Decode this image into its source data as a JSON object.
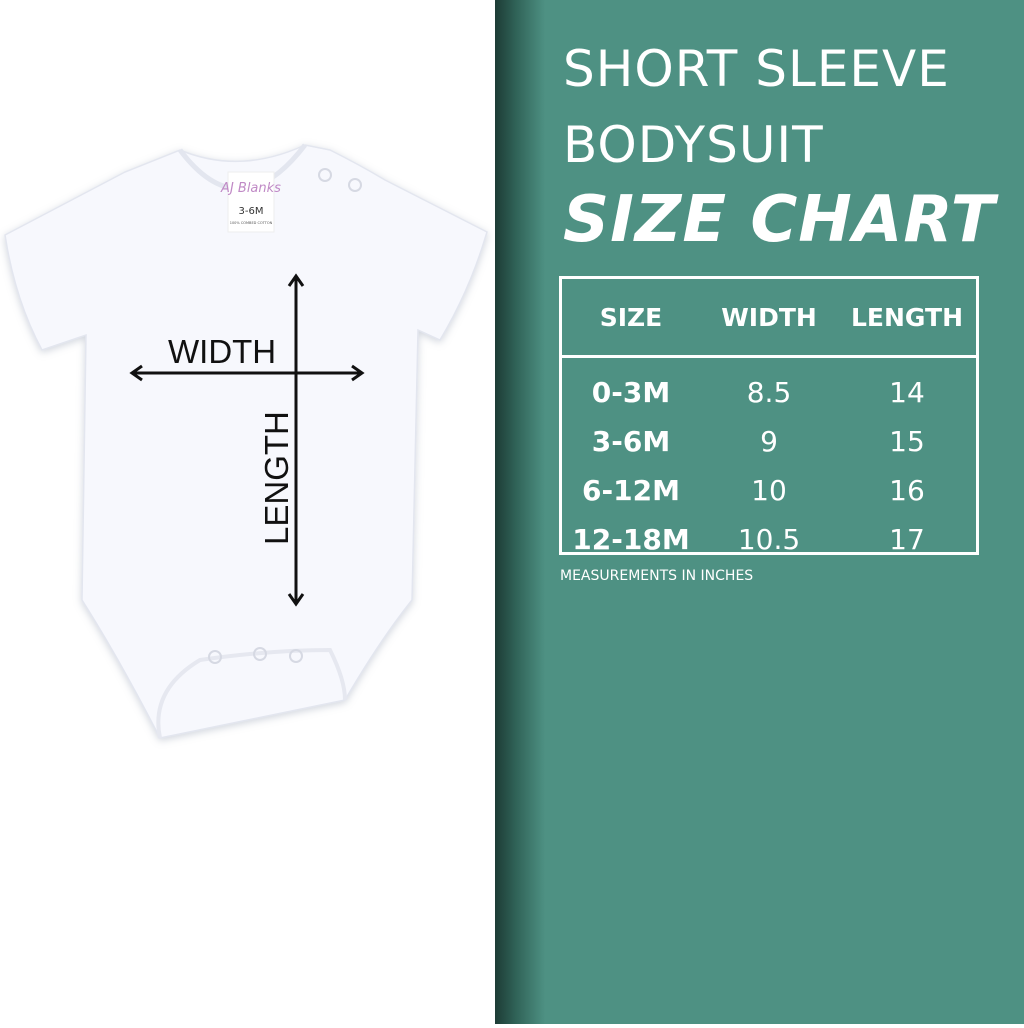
{
  "title": {
    "line1": "SHORT SLEEVE",
    "line2": "BODYSUIT",
    "line3": "SIZE CHART"
  },
  "table": {
    "headers": [
      "SIZE",
      "WIDTH",
      "LENGTH"
    ],
    "rows": [
      [
        "0-3M",
        "8.5",
        "14"
      ],
      [
        "3-6M",
        "9",
        "15"
      ],
      [
        "6-12M",
        "10",
        "16"
      ],
      [
        "12-18M",
        "10.5",
        "17"
      ]
    ]
  },
  "note": "MEASUREMENTS IN INCHES",
  "diagram": {
    "width_label": "WIDTH",
    "length_label": "LENGTH"
  },
  "garment_tag": {
    "brand": "AJ Blanks",
    "size": "3-6M",
    "fabric": "100% COMBED COTTON"
  },
  "colors": {
    "panel": "#4e9183",
    "text": "#ffffff",
    "arrow": "#111111"
  }
}
